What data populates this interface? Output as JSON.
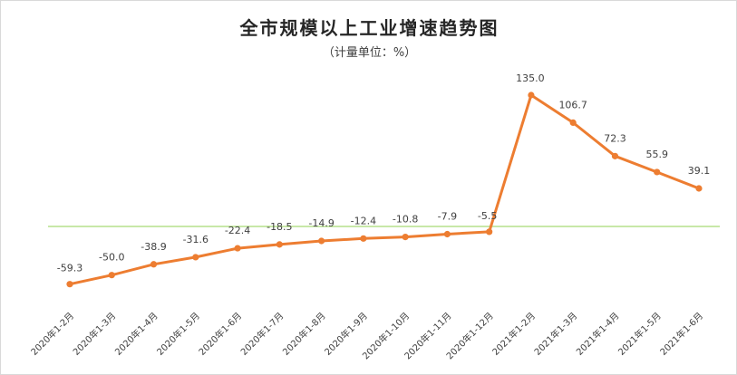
{
  "chart_data": {
    "type": "line",
    "title": "全市规模以上工业增速趋势图",
    "subtitle": "（计量单位：%）",
    "categories": [
      "2020年1-2月",
      "2020年1-3月",
      "2020年1-4月",
      "2020年1-5月",
      "2020年1-6月",
      "2020年1-7月",
      "2020年1-8月",
      "2020年1-9月",
      "2020年1-10月",
      "2020年1-11月",
      "2020年1-12月",
      "2021年1-2月",
      "2021年1-3月",
      "2021年1-4月",
      "2021年1-5月",
      "2021年1-6月"
    ],
    "series": [
      {
        "values": [
          -59.3,
          -50.0,
          -38.9,
          -31.6,
          -22.4,
          -18.5,
          -14.9,
          -12.4,
          -10.8,
          -7.9,
          -5.5,
          135.0,
          106.7,
          72.3,
          55.9,
          39.1
        ],
        "labels": [
          "-59.3",
          "-50.0",
          "-38.9",
          "-31.6",
          "-22.4",
          "-18.5",
          "-14.9",
          "-12.4",
          "-10.8",
          "-7.9",
          "-5.5",
          "135.0",
          "106.7",
          "72.3",
          "55.9",
          "39.1"
        ]
      }
    ],
    "ylim": [
      -75,
      150
    ],
    "colors": {
      "line": "#ED7D31",
      "zero_line": "#92D050",
      "text": "#404040"
    },
    "grid": false,
    "legend": "none"
  }
}
